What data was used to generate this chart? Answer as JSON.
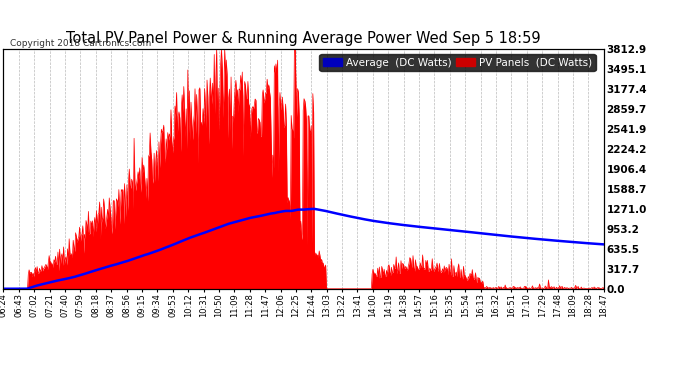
{
  "title": "Total PV Panel Power & Running Average Power Wed Sep 5 18:59",
  "copyright": "Copyright 2018 Cartronics.com",
  "ylabel_right_values": [
    0.0,
    317.7,
    635.5,
    953.2,
    1271.0,
    1588.7,
    1906.4,
    2224.2,
    2541.9,
    2859.7,
    3177.4,
    3495.1,
    3812.9
  ],
  "ylim": [
    0,
    3812.9
  ],
  "pv_color": "#ff0000",
  "avg_color": "#0000ff",
  "bg_color": "#ffffff",
  "grid_color": "#aaaaaa",
  "title_color": "#000000",
  "legend_avg_bg": "#0000cc",
  "legend_pv_bg": "#cc0000",
  "x_tick_labels": [
    "06:24",
    "06:43",
    "07:02",
    "07:21",
    "07:40",
    "07:59",
    "08:18",
    "08:37",
    "08:56",
    "09:15",
    "09:34",
    "09:53",
    "10:12",
    "10:31",
    "10:50",
    "11:09",
    "11:28",
    "11:47",
    "12:06",
    "12:25",
    "12:44",
    "13:03",
    "13:22",
    "13:41",
    "14:00",
    "14:19",
    "14:38",
    "14:57",
    "15:16",
    "15:35",
    "15:54",
    "16:13",
    "16:32",
    "16:51",
    "17:10",
    "17:29",
    "17:48",
    "18:09",
    "18:28",
    "18:47"
  ],
  "num_points": 750
}
